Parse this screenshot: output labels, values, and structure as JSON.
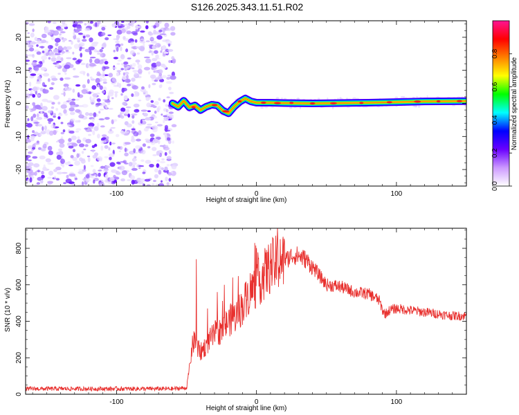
{
  "title": "S126.2025.343.11.51.R02",
  "chart_data": [
    {
      "type": "heatmap",
      "name": "spectrogram",
      "xlabel": "Height of straight line (km)",
      "ylabel": "Frequency (Hz)",
      "xlim": [
        -165,
        150
      ],
      "ylim": [
        -25,
        25
      ],
      "xticks": [
        -100,
        0,
        100
      ],
      "yticks": [
        -20,
        -10,
        0,
        10,
        20
      ],
      "noise_region_x": [
        -165,
        -60
      ],
      "signal_track": {
        "x": [
          -60,
          -56,
          -52,
          -48,
          -44,
          -40,
          -36,
          -32,
          -28,
          -24,
          -20,
          -16,
          -12,
          -8,
          -4,
          0,
          10,
          20,
          40,
          60,
          80,
          100,
          120,
          150
        ],
        "freq": [
          0.0,
          -1.0,
          0.8,
          -1.2,
          -0.6,
          -2.0,
          -1.0,
          -0.4,
          -0.6,
          -2.2,
          -3.0,
          -1.0,
          0.5,
          1.5,
          0.6,
          0.2,
          0.2,
          0.1,
          0.0,
          0.1,
          0.2,
          0.4,
          0.6,
          0.7
        ]
      },
      "colorbar": {
        "label": "Normalized spectral amplitude",
        "range": [
          0.0,
          1.0
        ],
        "ticks": [
          0.0,
          0.2,
          0.4,
          0.6,
          0.8
        ],
        "tick_labels": [
          "0.0",
          "0.2",
          "0.4",
          "0.6",
          "0.8"
        ],
        "colors": [
          "#ffffff",
          "#cc99ff",
          "#6a00ff",
          "#0000ff",
          "#00ffff",
          "#00ff00",
          "#ffff00",
          "#ff8000",
          "#ff0000",
          "#ff1493"
        ]
      }
    },
    {
      "type": "line",
      "name": "snr",
      "xlabel": "Height of straight line (km)",
      "ylabel": "SNR (10 * v/v)",
      "xlim": [
        -165,
        150
      ],
      "ylim": [
        0,
        910
      ],
      "xticks": [
        -100,
        0,
        100
      ],
      "yticks": [
        0,
        200,
        400,
        600,
        800
      ],
      "color": "#e8302e",
      "series": {
        "x": [
          -165,
          -100,
          -60,
          -50,
          -48,
          -46,
          -44,
          -42,
          -40,
          -35,
          -30,
          -25,
          -20,
          -15,
          -10,
          -5,
          0,
          5,
          10,
          15,
          20,
          25,
          30,
          35,
          40,
          50,
          60,
          70,
          80,
          85,
          88,
          90,
          92,
          95,
          100,
          110,
          120,
          130,
          140,
          150
        ],
        "y": [
          30,
          30,
          30,
          35,
          140,
          260,
          300,
          250,
          230,
          280,
          330,
          350,
          400,
          430,
          480,
          560,
          600,
          650,
          700,
          720,
          730,
          760,
          760,
          740,
          700,
          600,
          590,
          560,
          550,
          530,
          510,
          460,
          440,
          460,
          470,
          460,
          450,
          440,
          430,
          430
        ]
      },
      "spikes": [
        {
          "x": -43,
          "y": 740
        },
        {
          "x": -35,
          "y": 470
        },
        {
          "x": -28,
          "y": 560
        },
        {
          "x": -23,
          "y": 600
        },
        {
          "x": -17,
          "y": 640
        },
        {
          "x": -7,
          "y": 520
        },
        {
          "x": 8,
          "y": 780
        },
        {
          "x": 15,
          "y": 910
        },
        {
          "x": 17,
          "y": 850
        },
        {
          "x": 20,
          "y": 840
        }
      ]
    }
  ]
}
